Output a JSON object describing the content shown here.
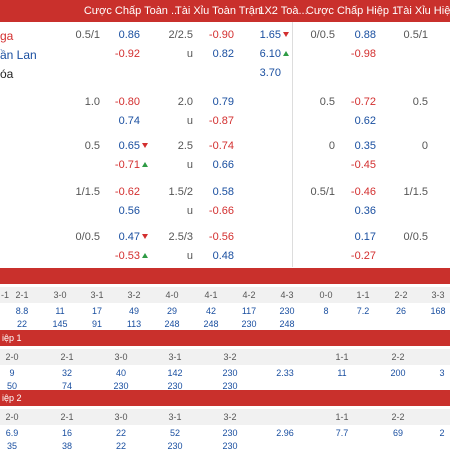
{
  "header": {
    "columns": [
      "Cược Chấp Toàn ...",
      "Tài Xỉu Toàn Trận",
      "1X2 Toà...",
      "Cược Chấp Hiệp 1",
      "Tài Xỉu Hiệ..."
    ]
  },
  "teams": [
    "ga",
    "ần Lan",
    "óa"
  ],
  "odds_groups": [
    {
      "hdp": "0.5/1",
      "hdp_odds": [
        "0.86",
        "-0.92"
      ],
      "hdp_trend": [
        null,
        null
      ],
      "ou": "2/2.5",
      "ou_odds": [
        "-0.90",
        "0.82"
      ],
      "under": "u",
      "x12": [
        "1.65",
        "6.10",
        "3.70"
      ],
      "x12_trend": [
        "down",
        "up",
        null
      ],
      "h1": "0/0.5",
      "h1_odds": [
        "0.88",
        "-0.98"
      ],
      "h1_ou": "0.5/1"
    },
    {
      "hdp": "1.0",
      "hdp_odds": [
        "-0.80",
        "0.74"
      ],
      "hdp_trend": [
        null,
        null
      ],
      "ou": "2.0",
      "ou_odds": [
        "0.79",
        "-0.87"
      ],
      "under": "u",
      "h1": "0.5",
      "h1_odds": [
        "-0.72",
        "0.62"
      ],
      "h1_ou": "0.5"
    },
    {
      "hdp": "0.5",
      "hdp_odds": [
        "0.65",
        "-0.71"
      ],
      "hdp_trend": [
        "down",
        "up"
      ],
      "ou": "2.5",
      "ou_odds": [
        "-0.74",
        "0.66"
      ],
      "under": "u",
      "h1": "0",
      "h1_odds": [
        "0.35",
        "-0.45"
      ],
      "h1_ou": "0"
    },
    {
      "hdp": "1/1.5",
      "hdp_odds": [
        "-0.62",
        "0.56"
      ],
      "hdp_trend": [
        null,
        null
      ],
      "ou": "1.5/2",
      "ou_odds": [
        "0.58",
        "-0.66"
      ],
      "under": "u",
      "h1": "0.5/1",
      "h1_odds": [
        "-0.46",
        "0.36"
      ],
      "h1_ou": "1/1.5"
    },
    {
      "hdp": "0/0.5",
      "hdp_odds": [
        "0.47",
        "-0.53"
      ],
      "hdp_trend": [
        "down",
        "up"
      ],
      "ou": "2.5/3",
      "ou_odds": [
        "-0.56",
        "0.48"
      ],
      "under": "u",
      "h1": null,
      "h1_odds": [
        "0.17",
        "-0.27"
      ],
      "h1_ou": "0/0.5"
    }
  ],
  "score_tables": [
    {
      "label": null,
      "columns": [
        {
          "score": "-1",
          "values": []
        },
        {
          "score": "2-1",
          "values": [
            8.8,
            22
          ]
        },
        {
          "score": "3-0",
          "values": [
            11,
            145
          ]
        },
        {
          "score": "3-1",
          "values": [
            17,
            91
          ]
        },
        {
          "score": "3-2",
          "values": [
            49,
            113
          ]
        },
        {
          "score": "4-0",
          "values": [
            29,
            248
          ]
        },
        {
          "score": "4-1",
          "values": [
            42,
            248
          ]
        },
        {
          "score": "4-2",
          "values": [
            117,
            230
          ]
        },
        {
          "score": "4-3",
          "values": [
            230,
            248
          ]
        },
        {
          "score": "0-0",
          "values": [
            8
          ]
        },
        {
          "score": "1-1",
          "values": [
            7.2
          ]
        },
        {
          "score": "2-2",
          "values": [
            26
          ]
        },
        {
          "score": "3-3",
          "values": [
            168
          ]
        }
      ]
    },
    {
      "label": "iệp 1",
      "columns": [
        {
          "score": "2-0",
          "values": [
            9,
            50
          ]
        },
        {
          "score": "2-1",
          "values": [
            32,
            74
          ]
        },
        {
          "score": "3-0",
          "values": [
            40,
            230
          ]
        },
        {
          "score": "3-1",
          "values": [
            142,
            230
          ]
        },
        {
          "score": "3-2",
          "values": [
            230,
            230
          ]
        },
        {
          "score": null,
          "values": [
            2.33
          ]
        },
        {
          "score": "1-1",
          "values": [
            11
          ]
        },
        {
          "score": "2-2",
          "values": [
            200
          ]
        },
        {
          "score": null,
          "values": [
            3
          ]
        }
      ]
    },
    {
      "label": "iệp 2",
      "columns": [
        {
          "score": "2-0",
          "values": [
            6.9,
            35
          ]
        },
        {
          "score": "2-1",
          "values": [
            16,
            38
          ]
        },
        {
          "score": "3-0",
          "values": [
            22,
            22
          ]
        },
        {
          "score": "3-1",
          "values": [
            52,
            230
          ]
        },
        {
          "score": "3-2",
          "values": [
            230,
            230
          ]
        },
        {
          "score": null,
          "values": [
            2.96
          ]
        },
        {
          "score": "1-1",
          "values": [
            7.7
          ]
        },
        {
          "score": "2-2",
          "values": [
            69
          ]
        },
        {
          "score": null,
          "values": [
            2
          ]
        }
      ]
    }
  ]
}
